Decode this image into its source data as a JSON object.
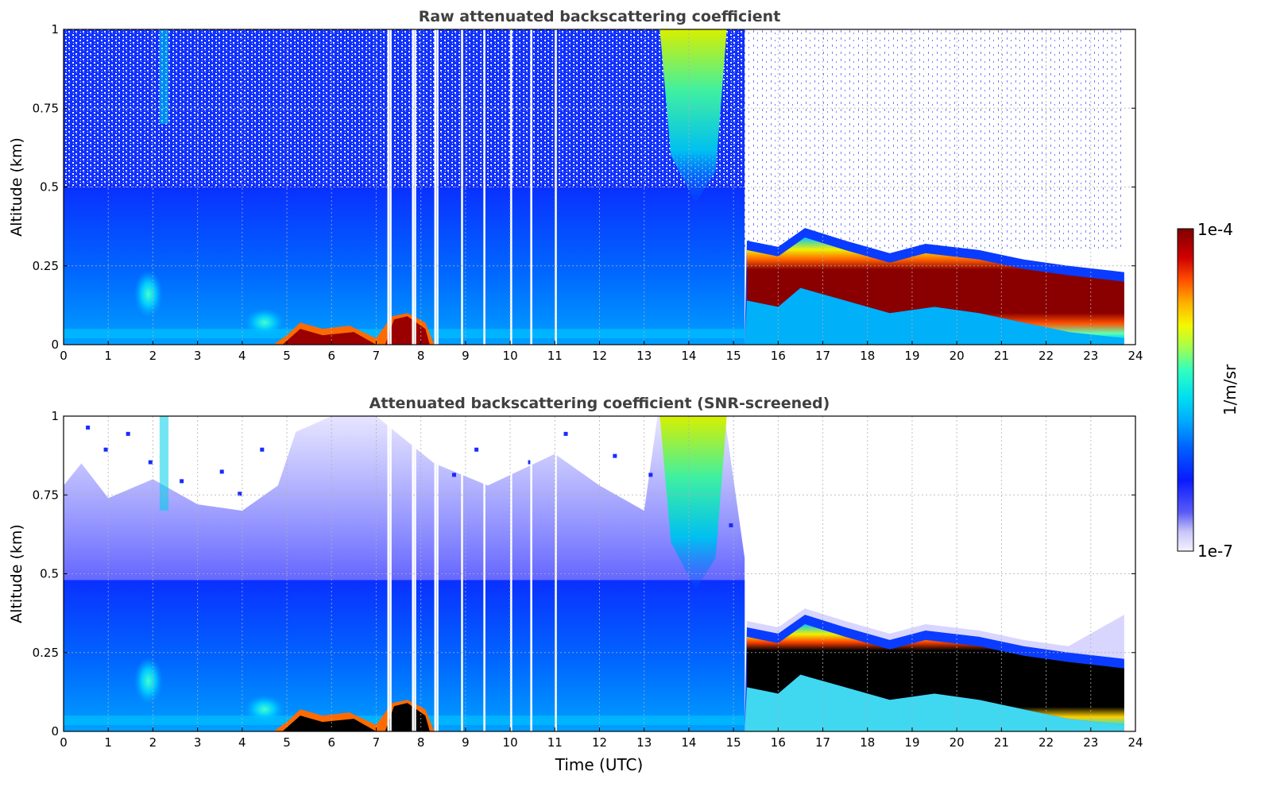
{
  "figure": {
    "shared_xlabel": "Time (UTC)",
    "colorbar": {
      "label": "1/m/sr",
      "top_label": "1e-4",
      "bottom_label": "1e-7",
      "scale": "log",
      "range": [
        1e-07,
        0.0001
      ],
      "colormap": "jet with light-lavender low end"
    }
  },
  "chart_data": [
    {
      "type": "heatmap",
      "title": "Raw attenuated backscattering coefficient",
      "xlabel": "",
      "ylabel": "Altitude (km)",
      "xlim": [
        0,
        24
      ],
      "ylim": [
        0,
        1
      ],
      "xticks": [
        "0",
        "1",
        "2",
        "3",
        "4",
        "5",
        "6",
        "7",
        "8",
        "9",
        "10",
        "11",
        "12",
        "13",
        "14",
        "15",
        "16",
        "17",
        "18",
        "19",
        "20",
        "21",
        "22",
        "23",
        "24"
      ],
      "yticks": [
        "0",
        "0.25",
        "0.5",
        "0.75",
        "1"
      ],
      "grid": true,
      "noise_speckle_top_km": 0.55,
      "data_end_hour": 23.75,
      "missing_data_hours": [
        7.25,
        7.3,
        7.8,
        7.85,
        8.3,
        8.35,
        8.9,
        9.4,
        10.0,
        10.45,
        11.0
      ],
      "features": [
        {
          "name": "fog/aerosol layer",
          "x_start": 4.7,
          "x_end": 8.3,
          "y_top": 0.1
        },
        {
          "name": "precipitation shaft",
          "x_start": 13.3,
          "x_end": 14.8,
          "y_top": 1.0
        },
        {
          "name": "stratus layer",
          "x_start": 15.25,
          "x_end": 23.75,
          "base_km": [
            [
              15.3,
              0.14
            ],
            [
              16,
              0.12
            ],
            [
              16.5,
              0.18
            ],
            [
              17.5,
              0.14
            ],
            [
              18.5,
              0.1
            ],
            [
              19.5,
              0.12
            ],
            [
              20.5,
              0.1
            ],
            [
              21.5,
              0.07
            ],
            [
              22.5,
              0.04
            ],
            [
              23.75,
              0.02
            ]
          ],
          "top_km": [
            [
              15.3,
              0.3
            ],
            [
              16,
              0.28
            ],
            [
              16.6,
              0.34
            ],
            [
              17.5,
              0.3
            ],
            [
              18.5,
              0.26
            ],
            [
              19.3,
              0.29
            ],
            [
              20.5,
              0.27
            ],
            [
              21.5,
              0.24
            ],
            [
              22.5,
              0.22
            ],
            [
              23.75,
              0.2
            ]
          ]
        }
      ]
    },
    {
      "type": "heatmap",
      "title": "Attenuated backscattering coefficient (SNR-screened)",
      "xlabel": "Time (UTC)",
      "ylabel": "Altitude (km)",
      "xlim": [
        0,
        24
      ],
      "ylim": [
        0,
        1
      ],
      "xticks": [
        "0",
        "1",
        "2",
        "3",
        "4",
        "5",
        "6",
        "7",
        "8",
        "9",
        "10",
        "11",
        "12",
        "13",
        "14",
        "15",
        "16",
        "17",
        "18",
        "19",
        "20",
        "21",
        "22",
        "23",
        "24"
      ],
      "yticks": [
        "0",
        "0.25",
        "0.5",
        "0.75",
        "1"
      ],
      "grid": true,
      "screened_top_km_left": 0.78,
      "missing_data_hours": [
        7.25,
        7.3,
        7.8,
        7.85,
        8.3,
        8.35,
        8.9,
        9.4,
        10.0,
        10.45,
        11.0
      ],
      "features": [
        {
          "name": "saturated fog layer",
          "x_start": 4.7,
          "x_end": 8.3,
          "y_top": 0.1
        },
        {
          "name": "saturated stratus core",
          "x_start": 15.25,
          "x_end": 23.75,
          "color": "black"
        }
      ]
    }
  ]
}
